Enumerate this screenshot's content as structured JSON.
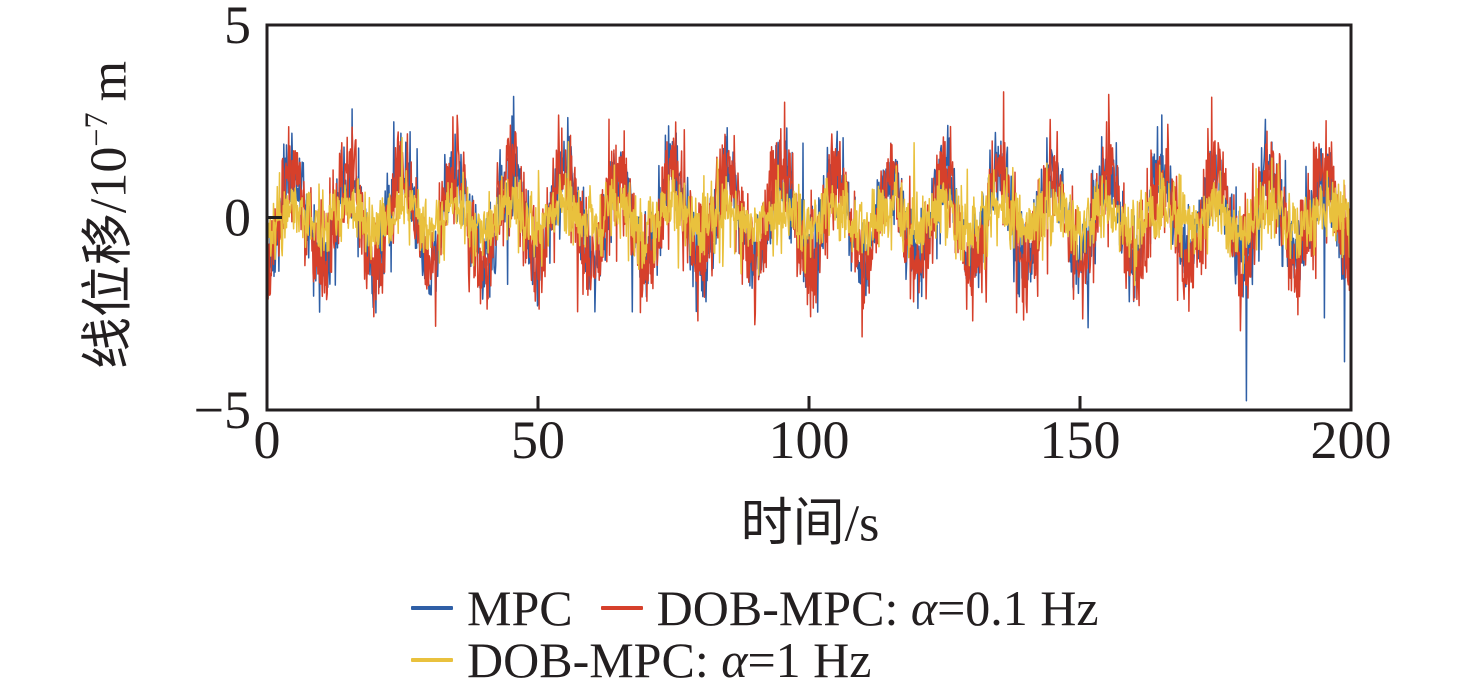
{
  "figure": {
    "background": "#ffffff",
    "axis_color": "#231f20"
  },
  "axes": {
    "xlabel": "时间/s",
    "ylabel": {
      "base": "线位移/10",
      "exponent": "−7",
      "unit": "m",
      "full": "线位移/10⁻⁷ m"
    },
    "x_tick_labels": [
      "0",
      "50",
      "100",
      "150",
      "200"
    ],
    "y_tick_labels": [
      "5",
      "0",
      "−5"
    ]
  },
  "legend": {
    "items": [
      {
        "prefix": "MPC",
        "alpha": "",
        "suffix": ""
      },
      {
        "prefix": "DOB-MPC: ",
        "alpha": "α",
        "suffix": "=0.1 Hz"
      },
      {
        "prefix": "DOB-MPC: ",
        "alpha": "α",
        "suffix": "=1 Hz"
      }
    ]
  },
  "chart_data": {
    "type": "line",
    "title": "",
    "xlabel": "时间/s",
    "ylabel": "线位移/10⁻⁷ m",
    "xlim": [
      0,
      200
    ],
    "ylim": [
      -5,
      5
    ],
    "x_ticks": [
      0,
      50,
      100,
      150,
      200
    ],
    "y_ticks": [
      5,
      0,
      -5
    ],
    "grid": false,
    "legend_position": "below",
    "sample_step_s": 0.1,
    "series": [
      {
        "name": "MPC",
        "color": "#2f5fa6",
        "period_s": 10,
        "peak_s": 5,
        "amplitude": 1.15,
        "noise_sd": 0.58,
        "spike_prob": 0.003,
        "spike_mag": 1.9,
        "seed": 7
      },
      {
        "name": "DOB-MPC: α=0.1 Hz",
        "color": "#d6402b",
        "period_s": 10,
        "peak_s": 5,
        "amplitude": 1.25,
        "noise_sd": 0.66,
        "spike_prob": 0.004,
        "spike_mag": 2.0,
        "seed": 13
      },
      {
        "name": "DOB-MPC: α=1 Hz",
        "color": "#e9c13d",
        "period_s": 10,
        "peak_s": 5,
        "amplitude": 0.28,
        "noise_sd": 0.46,
        "spike_prob": 0.003,
        "spike_mag": 1.1,
        "seed": 21
      }
    ]
  }
}
